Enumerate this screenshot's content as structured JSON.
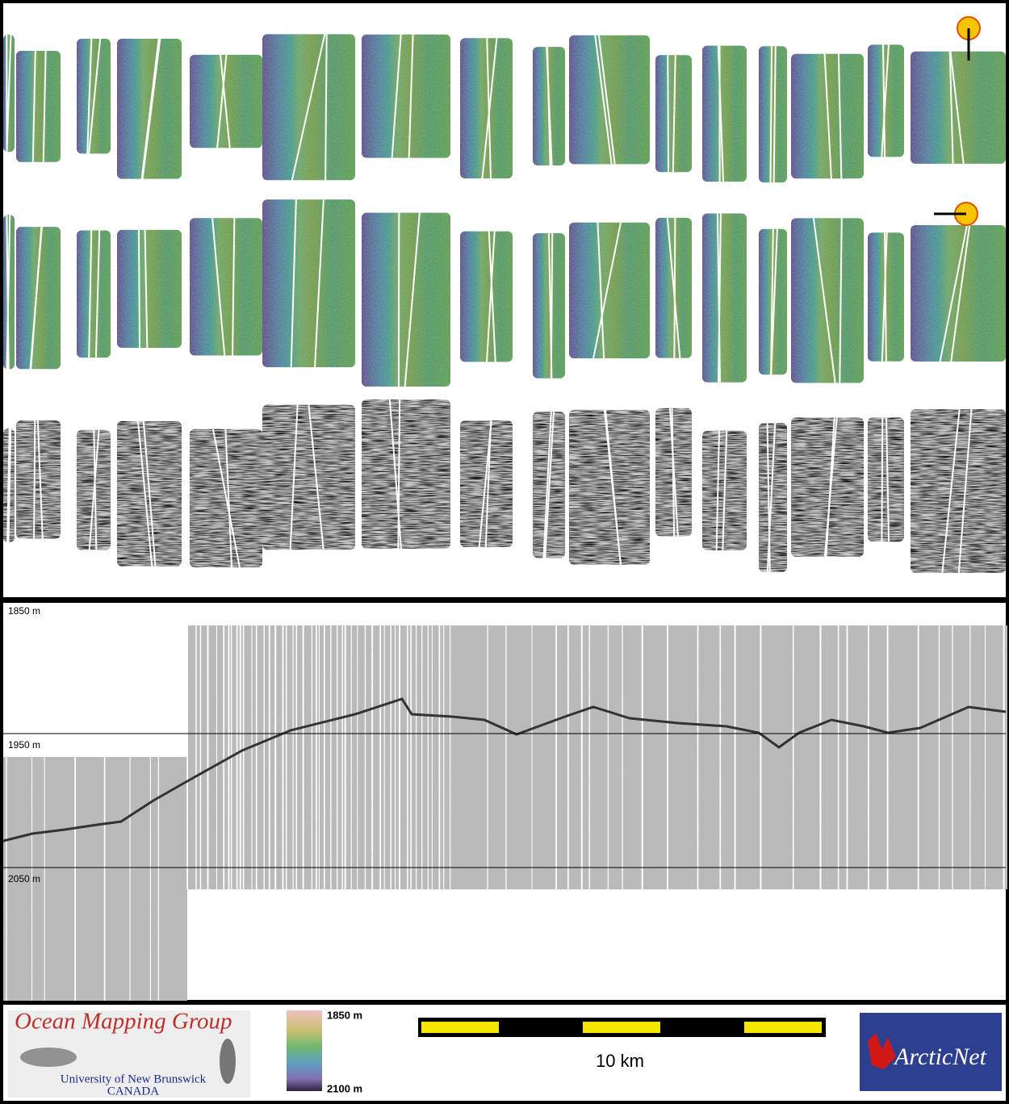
{
  "profile": {
    "depth_labels": [
      "1850 m",
      "1950 m",
      "2050 m"
    ]
  },
  "footer": {
    "logo": {
      "title": "Ocean Mapping Group",
      "institution": "University of New Brunswick",
      "country": "CANADA"
    },
    "colorbar": {
      "top_label": "1850 m",
      "bottom_label": "2100 m"
    },
    "scale_bar": {
      "label": "10 km"
    },
    "partner_logo": {
      "label": "ArcticNet"
    }
  }
}
